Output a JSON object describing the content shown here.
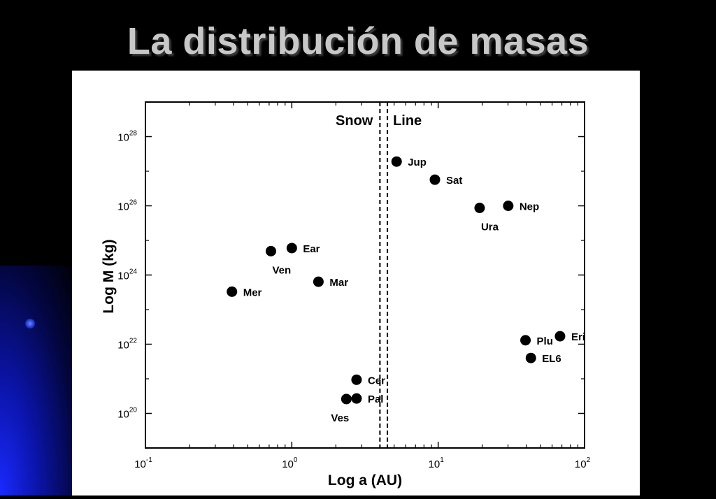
{
  "slide": {
    "title": "La distribución de masas"
  },
  "chart_data": {
    "type": "scatter",
    "title": "",
    "xlabel": "Log a (AU)",
    "ylabel": "Log M (kg)",
    "x_scale": "log",
    "y_scale": "log",
    "xlim": [
      0.1,
      100
    ],
    "ylim": [
      1e+19,
      1e+29
    ],
    "x_ticks": [
      {
        "value": 0.1,
        "base": "10",
        "exp": "-1"
      },
      {
        "value": 1,
        "base": "10",
        "exp": "0"
      },
      {
        "value": 10,
        "base": "10",
        "exp": "1"
      },
      {
        "value": 100,
        "base": "10",
        "exp": "2"
      }
    ],
    "y_ticks": [
      {
        "value": 1e+20,
        "base": "10",
        "exp": "20"
      },
      {
        "value": 1e+22,
        "base": "10",
        "exp": "22"
      },
      {
        "value": 1e+24,
        "base": "10",
        "exp": "24"
      },
      {
        "value": 1e+26,
        "base": "10",
        "exp": "26"
      },
      {
        "value": 1e+28,
        "base": "10",
        "exp": "28"
      }
    ],
    "grid": false,
    "marker_color": "#000000",
    "snow_line": {
      "x": [
        4.0,
        4.5
      ],
      "labels": [
        "Snow",
        "Line"
      ]
    },
    "points": [
      {
        "label": "Mer",
        "x": 0.39,
        "y": 3.3e+23,
        "label_pos": "right"
      },
      {
        "label": "Ven",
        "x": 0.72,
        "y": 4.9e+24,
        "label_pos": "below"
      },
      {
        "label": "Ear",
        "x": 1.0,
        "y": 6e+24,
        "label_pos": "right"
      },
      {
        "label": "Mar",
        "x": 1.52,
        "y": 6.4e+23,
        "label_pos": "right"
      },
      {
        "label": "Ves",
        "x": 2.36,
        "y": 2.6e+20,
        "label_pos": "below"
      },
      {
        "label": "Cer",
        "x": 2.77,
        "y": 9.4e+20,
        "label_pos": "right"
      },
      {
        "label": "Pal",
        "x": 2.77,
        "y": 2.7e+20,
        "label_pos": "right"
      },
      {
        "label": "Jup",
        "x": 5.2,
        "y": 1.9e+27,
        "label_pos": "right"
      },
      {
        "label": "Sat",
        "x": 9.5,
        "y": 5.7e+26,
        "label_pos": "right"
      },
      {
        "label": "Ura",
        "x": 19.2,
        "y": 8.7e+25,
        "label_pos": "below"
      },
      {
        "label": "Nep",
        "x": 30.1,
        "y": 1e+26,
        "label_pos": "right"
      },
      {
        "label": "Plu",
        "x": 39.5,
        "y": 1.3e+22,
        "label_pos": "right"
      },
      {
        "label": "EL6",
        "x": 43.0,
        "y": 4e+21,
        "label_pos": "right"
      },
      {
        "label": "Eri",
        "x": 68.0,
        "y": 1.7e+22,
        "label_pos": "right"
      }
    ]
  }
}
